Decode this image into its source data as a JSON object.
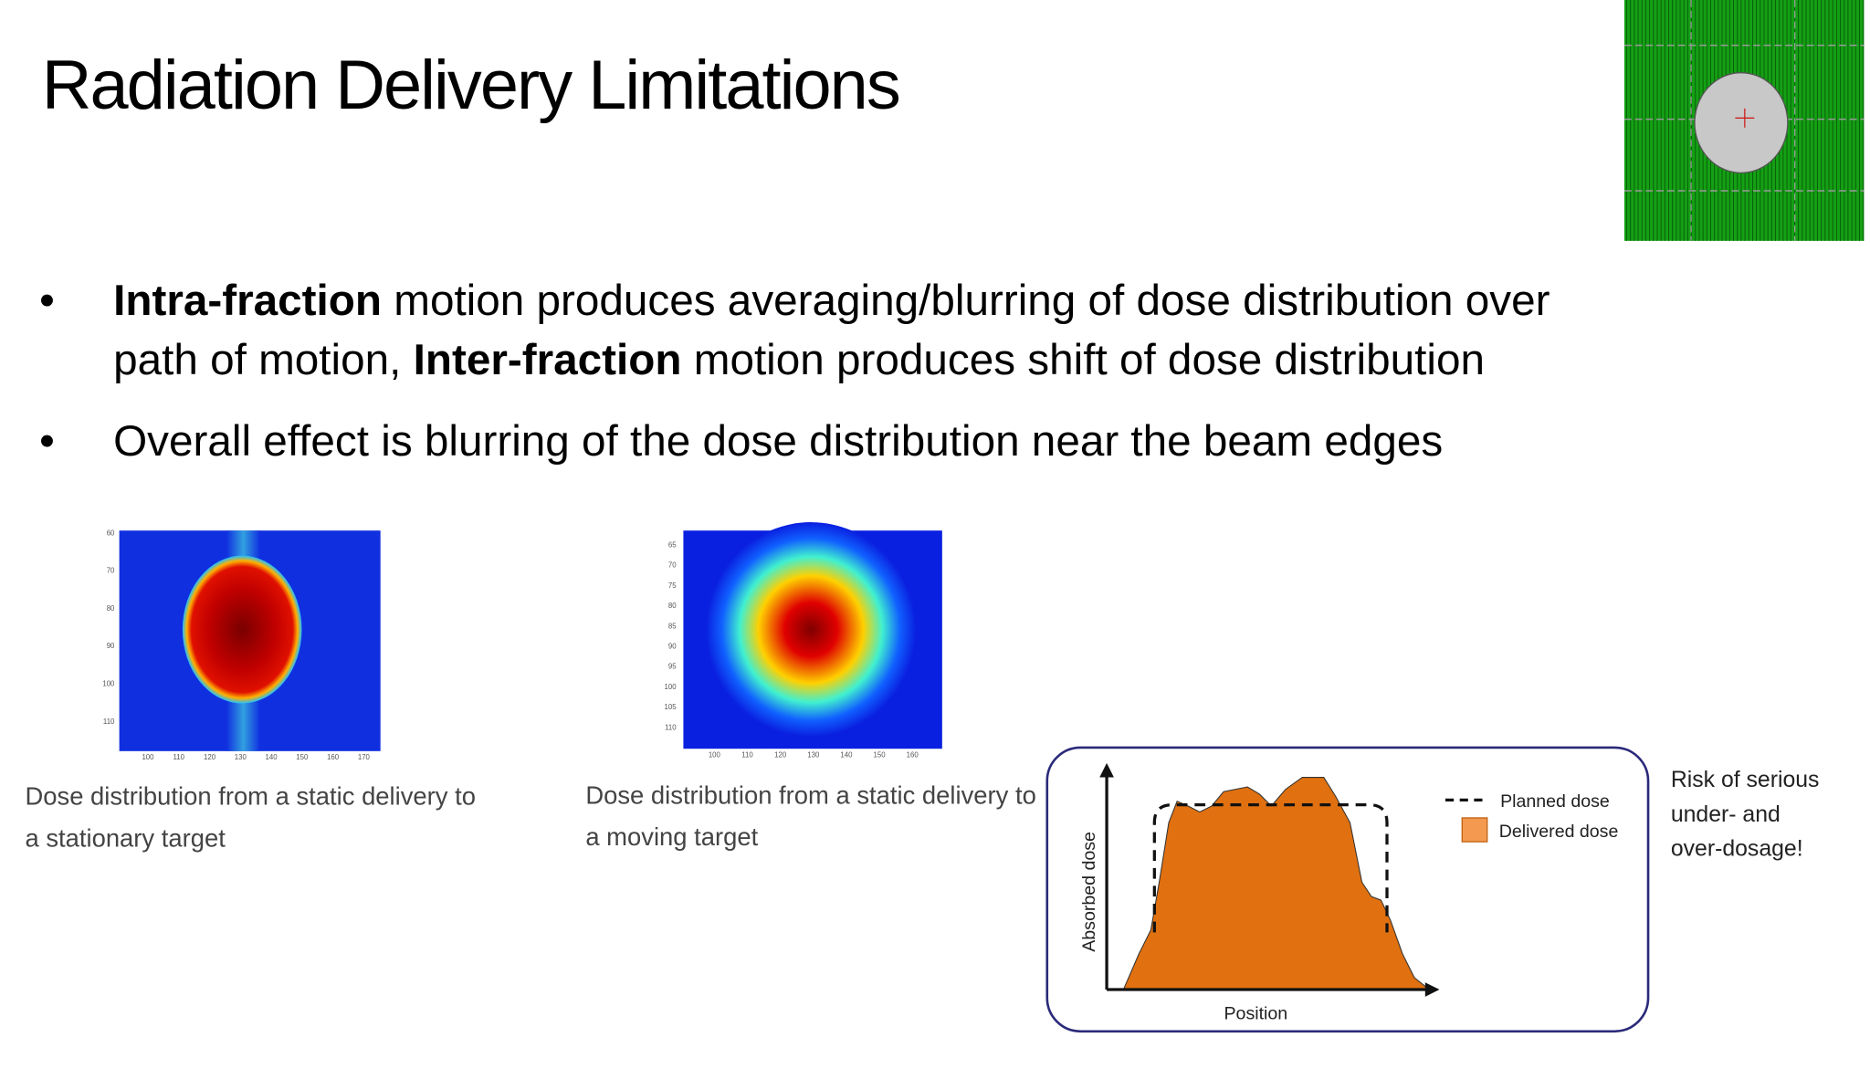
{
  "title": "Radiation Delivery Limitations",
  "bullets": [
    {
      "lines": [
        [
          "Intra-fraction",
          " motion produces averaging/blurring of dose distribution over"
        ],
        [
          "path of motion, ",
          "Inter-fraction",
          " motion produces shift of dose distribution"
        ]
      ]
    },
    {
      "lines": [
        [
          "Overall effect is blurring of the dose distribution near the beam edges"
        ]
      ]
    }
  ],
  "figures": [
    {
      "yticks": [
        "60",
        "70",
        "80",
        "90",
        "100",
        "110"
      ],
      "xticks": [
        "100",
        "110",
        "120",
        "130",
        "140",
        "150",
        "160",
        "170"
      ],
      "caption": [
        "Dose distribution from a static delivery to",
        "a stationary target"
      ]
    },
    {
      "yticks": [
        "65",
        "70",
        "75",
        "80",
        "85",
        "90",
        "95",
        "100",
        "105",
        "110"
      ],
      "xticks": [
        "100",
        "110",
        "120",
        "130",
        "140",
        "150",
        "160"
      ],
      "caption": [
        "Dose distribution from a static delivery to",
        "a moving target"
      ]
    }
  ],
  "dose_diagram": {
    "y_label": "Absorbed dose",
    "x_label": "Position",
    "legend": [
      "Planned dose",
      "Delivered dose"
    ]
  },
  "note": [
    "Risk of serious",
    "under- and",
    "over-dosage!"
  ]
}
